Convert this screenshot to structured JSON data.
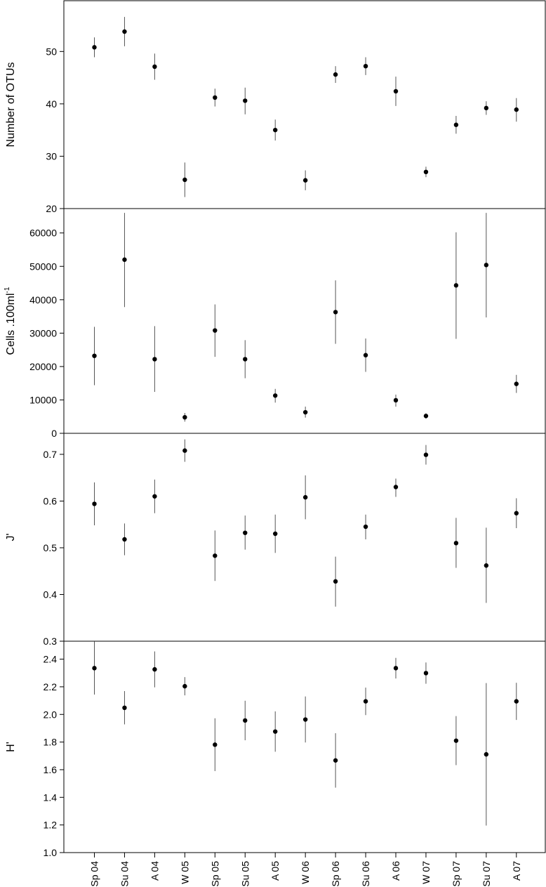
{
  "categories": [
    "Sp 04",
    "Su 04",
    "A 04",
    "W 05",
    "Sp 05",
    "Su 05",
    "A 05",
    "W 06",
    "Sp 06",
    "Su 06",
    "A 06",
    "W 07",
    "Sp 07",
    "Su 07",
    "A 07"
  ],
  "chart_data": [
    {
      "type": "scatter",
      "ylabel": "Number of OTUs",
      "ylim": [
        20,
        59.7
      ],
      "yticks": [
        20,
        30,
        40,
        50
      ],
      "tick_labels": [
        "20",
        "30",
        "40",
        "50"
      ],
      "values": [
        50.8,
        53.8,
        47.1,
        25.5,
        41.2,
        40.6,
        35.0,
        25.4,
        45.6,
        47.2,
        42.4,
        27.0,
        36.0,
        39.2,
        38.9
      ],
      "err_low": [
        48.9,
        51.0,
        44.6,
        22.2,
        39.5,
        38.0,
        33.0,
        23.5,
        44.0,
        45.5,
        39.6,
        26.0,
        34.3,
        37.9,
        36.6
      ],
      "err_high": [
        52.7,
        56.6,
        49.6,
        28.8,
        42.9,
        43.1,
        37.0,
        27.3,
        47.2,
        48.9,
        45.2,
        28.0,
        37.7,
        40.5,
        41.1
      ]
    },
    {
      "type": "scatter",
      "ylabel": "Cells .100ml",
      "ylabel_superscript": "-1",
      "ylim": [
        0,
        67300
      ],
      "yticks": [
        0,
        10000,
        20000,
        30000,
        40000,
        50000,
        60000
      ],
      "tick_labels": [
        "0",
        "10000",
        "20000",
        "30000",
        "40000",
        "50000",
        "60000"
      ],
      "values": [
        23200,
        52000,
        22200,
        4800,
        30800,
        22200,
        11300,
        6300,
        36300,
        23400,
        9900,
        5200,
        44300,
        50400,
        14800
      ],
      "err_low": [
        14400,
        37800,
        12400,
        3500,
        22900,
        16500,
        9200,
        4700,
        26800,
        18400,
        8000,
        4400,
        28300,
        34700,
        12100
      ],
      "err_high": [
        31900,
        66000,
        32100,
        6100,
        38600,
        27900,
        13300,
        8000,
        45800,
        28400,
        11600,
        6000,
        60200,
        66000,
        17500
      ]
    },
    {
      "type": "scatter",
      "ylabel": "J'",
      "ylim": [
        0.3,
        0.745
      ],
      "yticks": [
        0.3,
        0.4,
        0.5,
        0.6,
        0.7
      ],
      "tick_labels": [
        "0.3",
        "0.4",
        "0.5",
        "0.6",
        "0.7"
      ],
      "values": [
        0.594,
        0.518,
        0.61,
        0.708,
        0.483,
        0.532,
        0.53,
        0.608,
        0.428,
        0.545,
        0.63,
        0.699,
        0.51,
        0.462,
        0.574
      ],
      "err_low": [
        0.548,
        0.484,
        0.574,
        0.684,
        0.429,
        0.496,
        0.489,
        0.561,
        0.374,
        0.518,
        0.609,
        0.678,
        0.457,
        0.382,
        0.542
      ],
      "err_high": [
        0.64,
        0.552,
        0.646,
        0.732,
        0.537,
        0.569,
        0.571,
        0.655,
        0.481,
        0.571,
        0.648,
        0.72,
        0.564,
        0.543,
        0.606
      ]
    },
    {
      "type": "scatter",
      "ylabel": "H'",
      "ylim": [
        1.0,
        2.53
      ],
      "yticks": [
        1.0,
        1.2,
        1.4,
        1.6,
        1.8,
        2.0,
        2.2,
        2.4
      ],
      "tick_labels": [
        "1.0",
        "1.2",
        "1.4",
        "1.6",
        "1.8",
        "2.0",
        "2.2",
        "2.4"
      ],
      "values": [
        2.335,
        2.048,
        2.326,
        2.204,
        1.781,
        1.956,
        1.876,
        1.963,
        1.667,
        2.095,
        2.335,
        2.299,
        1.81,
        1.711,
        2.095
      ],
      "err_low": [
        2.144,
        1.928,
        2.196,
        2.138,
        1.59,
        1.813,
        1.73,
        1.797,
        1.47,
        1.995,
        2.26,
        2.222,
        1.633,
        1.196,
        1.96
      ],
      "err_high": [
        2.527,
        2.169,
        2.456,
        2.27,
        1.972,
        2.099,
        2.022,
        2.13,
        1.864,
        2.194,
        2.409,
        2.376,
        1.988,
        2.227,
        2.229
      ]
    }
  ]
}
